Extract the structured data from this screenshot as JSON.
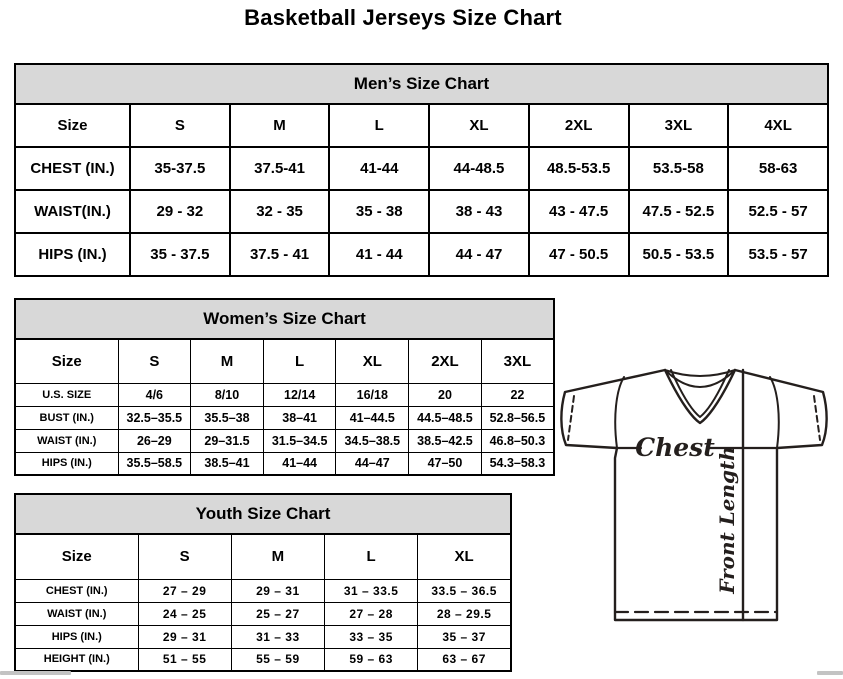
{
  "page": {
    "title": "Basketball Jerseys Size Chart"
  },
  "colors": {
    "header_band": "#d8d8d8",
    "border": "#000000",
    "text": "#000000",
    "diagram_ink": "#241f1d"
  },
  "tables": {
    "men": {
      "title": "Men’s Size Chart",
      "columns": [
        "Size",
        "S",
        "M",
        "L",
        "XL",
        "2XL",
        "3XL",
        "4XL"
      ],
      "rows": [
        {
          "label": "CHEST (IN.)",
          "values": [
            "35-37.5",
            "37.5-41",
            "41-44",
            "44-48.5",
            "48.5-53.5",
            "53.5-58",
            "58-63"
          ]
        },
        {
          "label": "WAIST(IN.)",
          "values": [
            "29 - 32",
            "32 - 35",
            "35 - 38",
            "38 - 43",
            "43 - 47.5",
            "47.5 - 52.5",
            "52.5 - 57"
          ]
        },
        {
          "label": "HIPS (IN.)",
          "values": [
            "35 - 37.5",
            "37.5 - 41",
            "41 - 44",
            "44 - 47",
            "47 - 50.5",
            "50.5 - 53.5",
            "53.5 - 57"
          ]
        }
      ]
    },
    "women": {
      "title": "Women’s Size Chart",
      "columns": [
        "Size",
        "S",
        "M",
        "L",
        "XL",
        "2XL",
        "3XL"
      ],
      "rows": [
        {
          "label": "U.S. SIZE",
          "values": [
            "4/6",
            "8/10",
            "12/14",
            "16/18",
            "20",
            "22"
          ]
        },
        {
          "label": "BUST (IN.)",
          "values": [
            "32.5–35.5",
            "35.5–38",
            "38–41",
            "41–44.5",
            "44.5–48.5",
            "52.8–56.5"
          ]
        },
        {
          "label": "WAIST (IN.)",
          "values": [
            "26–29",
            "29–31.5",
            "31.5–34.5",
            "34.5–38.5",
            "38.5–42.5",
            "46.8–50.3"
          ]
        },
        {
          "label": "HIPS (IN.)",
          "values": [
            "35.5–58.5",
            "38.5–41",
            "41–44",
            "44–47",
            "47–50",
            "54.3–58.3"
          ]
        }
      ]
    },
    "youth": {
      "title": "Youth Size Chart",
      "columns": [
        "Size",
        "S",
        "M",
        "L",
        "XL"
      ],
      "rows": [
        {
          "label": "CHEST (IN.)",
          "values": [
            "27 – 29",
            "29 – 31",
            "31 – 33.5",
            "33.5 – 36.5"
          ]
        },
        {
          "label": "WAIST (IN.)",
          "values": [
            "24 – 25",
            "25 – 27",
            "27 – 28",
            "28 – 29.5"
          ]
        },
        {
          "label": "HIPS (IN.)",
          "values": [
            "29 – 31",
            "31 – 33",
            "33 – 35",
            "35 – 37"
          ]
        },
        {
          "label": "HEIGHT (IN.)",
          "values": [
            "51 – 55",
            "55 – 59",
            "59 – 63",
            "63 – 67"
          ]
        }
      ]
    }
  },
  "diagram": {
    "chest_label": "Chest",
    "front_length_label": "Front Length"
  }
}
